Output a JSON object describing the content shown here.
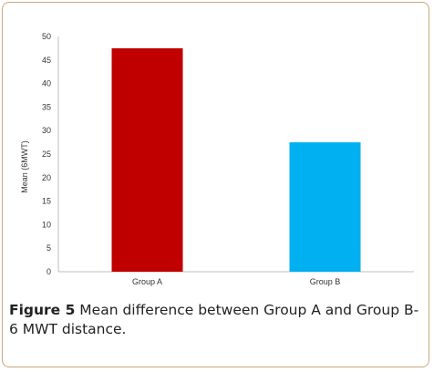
{
  "chart_data": {
    "type": "bar",
    "categories": [
      "Group A",
      "Group B"
    ],
    "values": [
      47.5,
      27.5
    ],
    "colors": [
      "#c00000",
      "#00b0f0"
    ],
    "ylabel": "Mean (6MWT)",
    "xlabel": "",
    "ylim": [
      0,
      50
    ],
    "yticks": [
      0,
      5,
      10,
      15,
      20,
      25,
      30,
      35,
      40,
      45,
      50
    ],
    "grid": false,
    "legend": "none"
  },
  "caption": {
    "lead": "Figure 5",
    "text": " Mean difference between Group A and Group B-6 MWT distance."
  }
}
